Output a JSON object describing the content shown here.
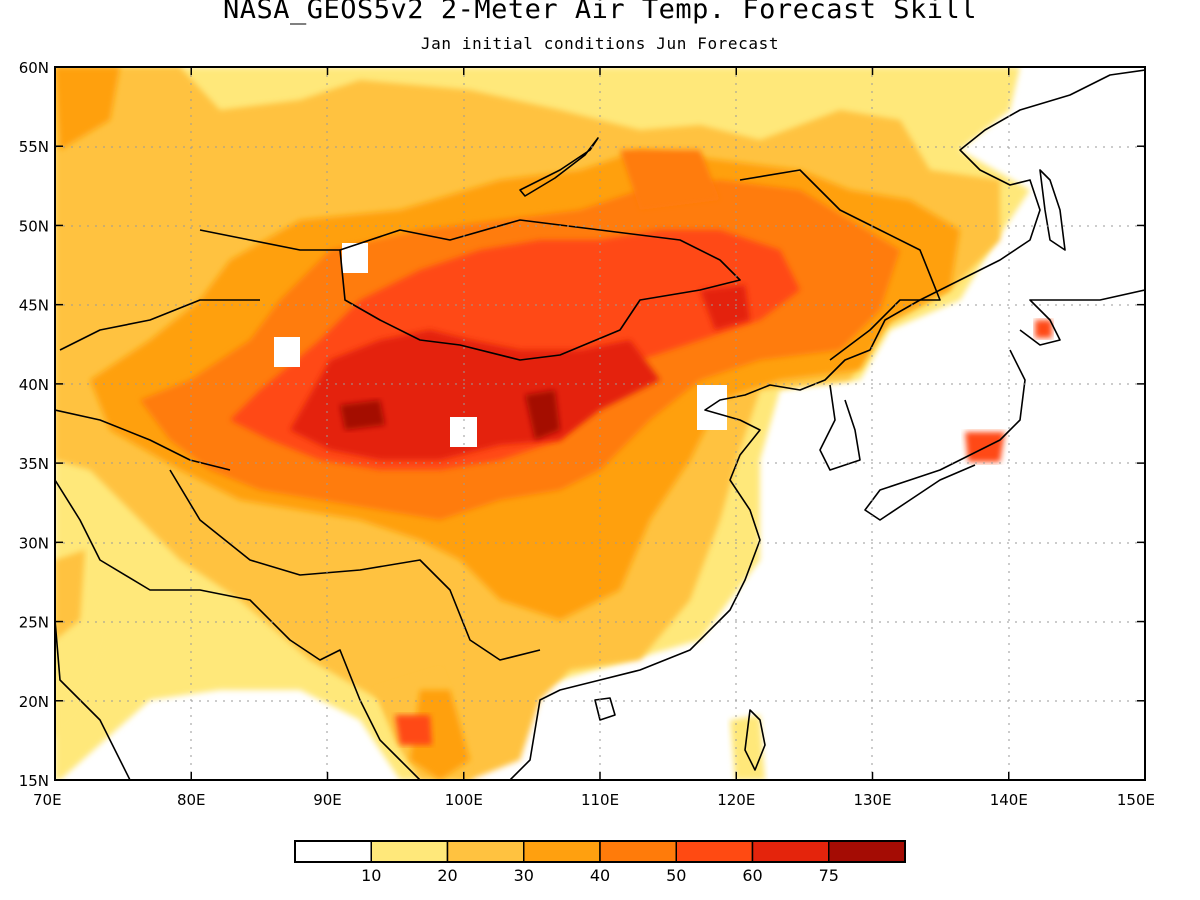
{
  "title": "NASA_GEOS5v2 2-Meter Air Temp. Forecast Skill",
  "subtitle": "Jan initial conditions  Jun Forecast",
  "lat_labels": [
    "15N",
    "20N",
    "25N",
    "30N",
    "35N",
    "40N",
    "45N",
    "50N",
    "55N",
    "60N"
  ],
  "lon_labels": [
    "70E",
    "80E",
    "90E",
    "100E",
    "110E",
    "120E",
    "130E",
    "140E",
    "150E"
  ],
  "lat_values": [
    15,
    20,
    25,
    30,
    35,
    40,
    45,
    50,
    55,
    60
  ],
  "lon_values": [
    70,
    80,
    90,
    100,
    110,
    120,
    130,
    140,
    150
  ],
  "colorbar": {
    "colors": [
      "#ffffff",
      "#ffe87a",
      "#ffc240",
      "#ffa00f",
      "#ff7b0a",
      "#ff4a12",
      "#e4240c",
      "#a40c04"
    ],
    "tick_labels": [
      "10",
      "20",
      "30",
      "40",
      "50",
      "60",
      "75"
    ]
  },
  "colors": {
    "c10": "#ffe87a",
    "c20": "#ffc240",
    "c30": "#ffa00f",
    "c40": "#ff7b0a",
    "c50": "#ff4a12",
    "c60": "#e4240c",
    "c75": "#a40c04",
    "coast": "#000000",
    "grid": "#9a9a9a"
  }
}
